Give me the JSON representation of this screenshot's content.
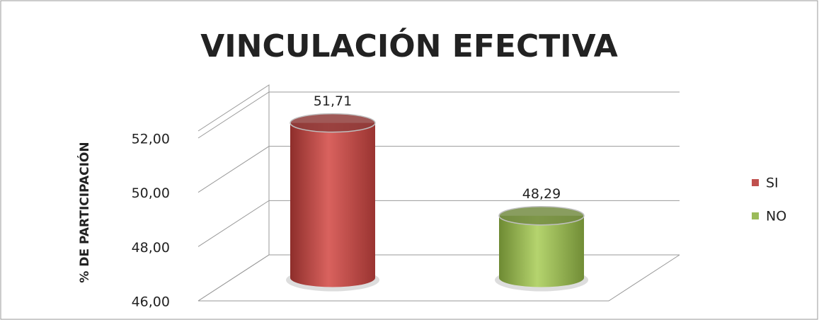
{
  "chart_data": {
    "type": "bar3d",
    "title": "VINCULACIÓN EFECTIVA",
    "y_label": "% DE PARTICIPACIÓN",
    "series": [
      {
        "name": "SI",
        "color": "#c0504d",
        "values": [
          51.71
        ],
        "value_labels": [
          "51,71"
        ]
      },
      {
        "name": "NO",
        "color": "#9bbb59",
        "values": [
          48.29
        ],
        "value_labels": [
          "48,29"
        ]
      }
    ],
    "ylim": [
      46,
      52
    ],
    "yticks": [
      {
        "value": 46,
        "label": "46,00"
      },
      {
        "value": 48,
        "label": "48,00"
      },
      {
        "value": 50,
        "label": "50,00"
      },
      {
        "value": 52,
        "label": "52,00"
      }
    ],
    "grid": true,
    "legend": "right"
  }
}
